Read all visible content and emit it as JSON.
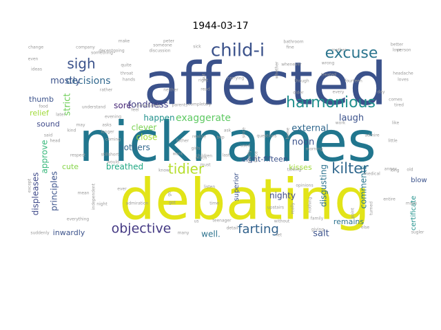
{
  "title": "1944-03-17",
  "cloud": {
    "words": [
      {
        "text": "affected",
        "color": "#3b528b"
      },
      {
        "text": "nicknames",
        "color": "#21768e"
      },
      {
        "text": "debating",
        "color": "#e2e418"
      },
      {
        "text": "child-i",
        "color": "#3b528b"
      },
      {
        "text": "excuse",
        "color": "#2b758e"
      },
      {
        "text": "harmonious",
        "color": "#21908d"
      },
      {
        "text": "sigh",
        "color": "#3b528b"
      },
      {
        "text": "tidier",
        "color": "#b5de2b"
      },
      {
        "text": "kilter",
        "color": "#31688e"
      },
      {
        "text": "objective",
        "color": "#443983"
      },
      {
        "text": "farting",
        "color": "#33638d"
      },
      {
        "text": "decisions",
        "color": "#31688e"
      },
      {
        "text": "mostly",
        "color": "#3b528b"
      },
      {
        "text": "fondness",
        "color": "#424086"
      },
      {
        "text": "exaggerate",
        "color": "#5ec962"
      },
      {
        "text": "laugh",
        "color": "#3b528b"
      },
      {
        "text": "strict",
        "color": "#6ece58"
      },
      {
        "text": "comments",
        "color": "#2a788e"
      },
      {
        "text": "external",
        "color": "#31688e"
      },
      {
        "text": "noon",
        "color": "#3b528b"
      },
      {
        "text": "sore",
        "color": "#482878"
      },
      {
        "text": "happen",
        "color": "#21918c"
      },
      {
        "text": "thumb",
        "color": "#3b528b"
      },
      {
        "text": "relief",
        "color": "#a0da39"
      },
      {
        "text": "sound",
        "color": "#3e4989"
      },
      {
        "text": "approve",
        "color": "#35b779"
      },
      {
        "text": "clever",
        "color": "#7ad151"
      },
      {
        "text": "close",
        "color": "#a5db36"
      },
      {
        "text": "bothers",
        "color": "#31688e"
      },
      {
        "text": "breathed",
        "color": "#22a884"
      },
      {
        "text": "cute",
        "color": "#86d549"
      },
      {
        "text": "principles",
        "color": "#3b528b"
      },
      {
        "text": "displeases",
        "color": "#3e4989"
      },
      {
        "text": "eight-fifteen",
        "color": "#3b528b"
      },
      {
        "text": "kisses",
        "color": "#a0da39"
      },
      {
        "text": "superior",
        "color": "#3b528b"
      },
      {
        "text": "disgusting",
        "color": "#2c728e"
      },
      {
        "text": "nighty",
        "color": "#3e4989"
      },
      {
        "text": "remains",
        "color": "#2c728e"
      },
      {
        "text": "salt",
        "color": "#3b528b"
      },
      {
        "text": "well.",
        "color": "#2c728e"
      },
      {
        "text": "inwardly",
        "color": "#3b528b"
      },
      {
        "text": "blow",
        "color": "#3b528b"
      },
      {
        "text": "certificate",
        "color": "#21918c"
      },
      {
        "text": "feel",
        "color": "#999999"
      },
      {
        "text": "later",
        "color": "#999999"
      },
      {
        "text": "said",
        "color": "#999999"
      },
      {
        "text": "head",
        "color": "#999999"
      },
      {
        "text": "kind",
        "color": "#999999"
      },
      {
        "text": "mother",
        "color": "#999999"
      },
      {
        "text": "love",
        "color": "#999999"
      },
      {
        "text": "better",
        "color": "#999999"
      },
      {
        "text": "person",
        "color": "#999999"
      },
      {
        "text": "peter",
        "color": "#999999"
      },
      {
        "text": "father",
        "color": "#999999"
      },
      {
        "text": "girls",
        "color": "#999999"
      },
      {
        "text": "much",
        "color": "#999999"
      },
      {
        "text": "questions",
        "color": "#999999"
      },
      {
        "text": "work",
        "color": "#999999"
      },
      {
        "text": "morning",
        "color": "#999999"
      },
      {
        "text": "little",
        "color": "#999999"
      },
      {
        "text": "admire",
        "color": "#999999"
      },
      {
        "text": "ask",
        "color": "#999999"
      },
      {
        "text": "must",
        "color": "#999999"
      },
      {
        "text": "used",
        "color": "#999999"
      },
      {
        "text": "nearly",
        "color": "#999999"
      },
      {
        "text": "twice",
        "color": "#999999"
      },
      {
        "text": "since",
        "color": "#999999"
      },
      {
        "text": "home",
        "color": "#999999"
      },
      {
        "text": "upstairs",
        "color": "#999999"
      },
      {
        "text": "opinions",
        "color": "#999999"
      },
      {
        "text": "family",
        "color": "#999999"
      },
      {
        "text": "giving",
        "color": "#999999"
      },
      {
        "text": "teenager",
        "color": "#999999"
      },
      {
        "text": "time",
        "color": "#999999"
      },
      {
        "text": "listen",
        "color": "#999999"
      },
      {
        "text": "admiration",
        "color": "#999999"
      },
      {
        "text": "mean",
        "color": "#999999"
      },
      {
        "text": "night",
        "color": "#999999"
      },
      {
        "text": "ever",
        "color": "#999999"
      },
      {
        "text": "still",
        "color": "#999999"
      },
      {
        "text": "respect",
        "color": "#999999"
      },
      {
        "text": "short",
        "color": "#999999"
      },
      {
        "text": "would",
        "color": "#999999"
      },
      {
        "text": "coming",
        "color": "#999999"
      },
      {
        "text": "longer",
        "color": "#999999"
      },
      {
        "text": "asks",
        "color": "#999999"
      },
      {
        "text": "understand",
        "color": "#999999"
      },
      {
        "text": "evening",
        "color": "#999999"
      },
      {
        "text": "parents",
        "color": "#999999"
      },
      {
        "text": "completely",
        "color": "#999999"
      },
      {
        "text": "neither",
        "color": "#999999"
      },
      {
        "text": "rather",
        "color": "#999999"
      },
      {
        "text": "hands",
        "color": "#999999"
      },
      {
        "text": "throat",
        "color": "#999999"
      },
      {
        "text": "quite",
        "color": "#999999"
      },
      {
        "text": "ideas",
        "color": "#999999"
      },
      {
        "text": "even",
        "color": "#999999"
      },
      {
        "text": "change",
        "color": "#999999"
      },
      {
        "text": "company",
        "color": "#999999"
      },
      {
        "text": "decentgoing",
        "color": "#999999"
      },
      {
        "text": "discussion",
        "color": "#999999"
      },
      {
        "text": "someone",
        "color": "#999999"
      },
      {
        "text": "sick",
        "color": "#999999"
      },
      {
        "text": "bathroom",
        "color": "#999999"
      },
      {
        "text": "fine",
        "color": "#999999"
      },
      {
        "text": "whenever",
        "color": "#999999"
      },
      {
        "text": "carrying",
        "color": "#999999"
      },
      {
        "text": "read",
        "color": "#999999"
      },
      {
        "text": "right",
        "color": "#999999"
      },
      {
        "text": "older",
        "color": "#999999"
      },
      {
        "text": "though",
        "color": "#999999"
      },
      {
        "text": "every",
        "color": "#999999"
      },
      {
        "text": "day",
        "color": "#999999"
      },
      {
        "text": "fourteen",
        "color": "#999999"
      },
      {
        "text": "treated",
        "color": "#999999"
      },
      {
        "text": "wrong",
        "color": "#999999"
      },
      {
        "text": "comes",
        "color": "#999999"
      },
      {
        "text": "tired",
        "color": "#999999"
      },
      {
        "text": "headache",
        "color": "#999999"
      },
      {
        "text": "loves",
        "color": "#999999"
      },
      {
        "text": "like",
        "color": "#999999"
      },
      {
        "text": "medical",
        "color": "#999999"
      },
      {
        "text": "long",
        "color": "#999999"
      },
      {
        "text": "old",
        "color": "#999999"
      },
      {
        "text": "mays",
        "color": "#999999"
      },
      {
        "text": "entire",
        "color": "#999999"
      },
      {
        "text": "sugler",
        "color": "#999999"
      },
      {
        "text": "point",
        "color": "#999999"
      },
      {
        "text": "turned",
        "color": "#999999"
      },
      {
        "text": "talking",
        "color": "#999999"
      },
      {
        "text": "really",
        "color": "#999999"
      },
      {
        "text": "nothing",
        "color": "#999999"
      },
      {
        "text": "without",
        "color": "#999999"
      },
      {
        "text": "detail",
        "color": "#999999"
      },
      {
        "text": "let",
        "color": "#999999"
      },
      {
        "text": "us",
        "color": "#999999"
      },
      {
        "text": "many",
        "color": "#999999"
      },
      {
        "text": "annex",
        "color": "#999999"
      },
      {
        "text": "go",
        "color": "#999999"
      },
      {
        "text": "got",
        "color": "#999999"
      },
      {
        "text": "know",
        "color": "#999999"
      },
      {
        "text": "independent",
        "color": "#999999"
      },
      {
        "text": "everything",
        "color": "#999999"
      },
      {
        "text": "suddenly",
        "color": "#999999"
      },
      {
        "text": "except",
        "color": "#999999"
      },
      {
        "text": "something",
        "color": "#999999"
      },
      {
        "text": "children",
        "color": "#999999"
      },
      {
        "text": "realize",
        "color": "#999999"
      },
      {
        "text": "want",
        "color": "#999999"
      },
      {
        "text": "last",
        "color": "#999999"
      },
      {
        "text": "put",
        "color": "#999999"
      },
      {
        "text": "whether",
        "color": "#999999"
      },
      {
        "text": "immediately",
        "color": "#999999"
      },
      {
        "text": "else",
        "color": "#999999"
      },
      {
        "text": "may",
        "color": "#999999"
      },
      {
        "text": "food",
        "color": "#999999"
      },
      {
        "text": "make",
        "color": "#999999"
      },
      {
        "text": "bep",
        "color": "#999999"
      }
    ]
  }
}
